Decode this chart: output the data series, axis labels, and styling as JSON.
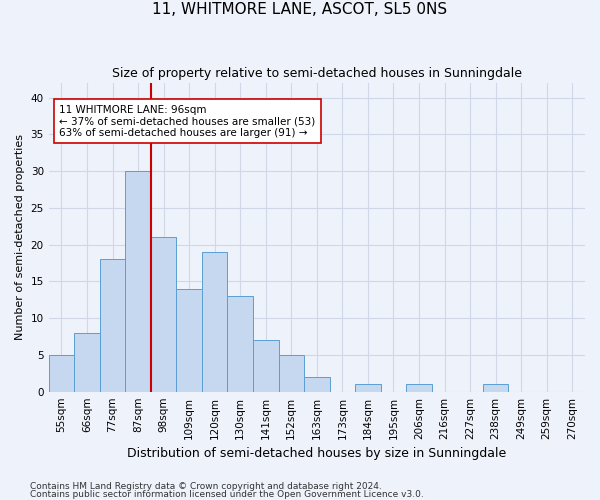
{
  "title": "11, WHITMORE LANE, ASCOT, SL5 0NS",
  "subtitle": "Size of property relative to semi-detached houses in Sunningdale",
  "xlabel": "Distribution of semi-detached houses by size in Sunningdale",
  "ylabel": "Number of semi-detached properties",
  "bar_values": [
    5,
    8,
    18,
    30,
    21,
    14,
    19,
    13,
    7,
    5,
    2,
    0,
    1,
    0,
    1,
    0,
    0,
    1,
    0,
    0,
    0
  ],
  "bar_labels": [
    "55sqm",
    "66sqm",
    "77sqm",
    "87sqm",
    "98sqm",
    "109sqm",
    "120sqm",
    "130sqm",
    "141sqm",
    "152sqm",
    "163sqm",
    "173sqm",
    "184sqm",
    "195sqm",
    "206sqm",
    "216sqm",
    "227sqm",
    "238sqm",
    "249sqm",
    "259sqm",
    "270sqm"
  ],
  "bar_color": "#c5d8f0",
  "bar_edge_color": "#5a9fd4",
  "grid_color": "#d0d8e8",
  "background_color": "#eef2fa",
  "vline_x": 3.5,
  "vline_color": "#cc0000",
  "annotation_text": "11 WHITMORE LANE: 96sqm\n← 37% of semi-detached houses are smaller (53)\n63% of semi-detached houses are larger (91) →",
  "annotation_box_color": "#ffffff",
  "annotation_box_edge": "#cc0000",
  "ylim": [
    0,
    42
  ],
  "yticks": [
    0,
    5,
    10,
    15,
    20,
    25,
    30,
    35,
    40
  ],
  "footnote1": "Contains HM Land Registry data © Crown copyright and database right 2024.",
  "footnote2": "Contains public sector information licensed under the Open Government Licence v3.0.",
  "title_fontsize": 11,
  "subtitle_fontsize": 9,
  "xlabel_fontsize": 9,
  "ylabel_fontsize": 8,
  "tick_fontsize": 7.5,
  "annotation_fontsize": 7.5,
  "footnote_fontsize": 6.5
}
